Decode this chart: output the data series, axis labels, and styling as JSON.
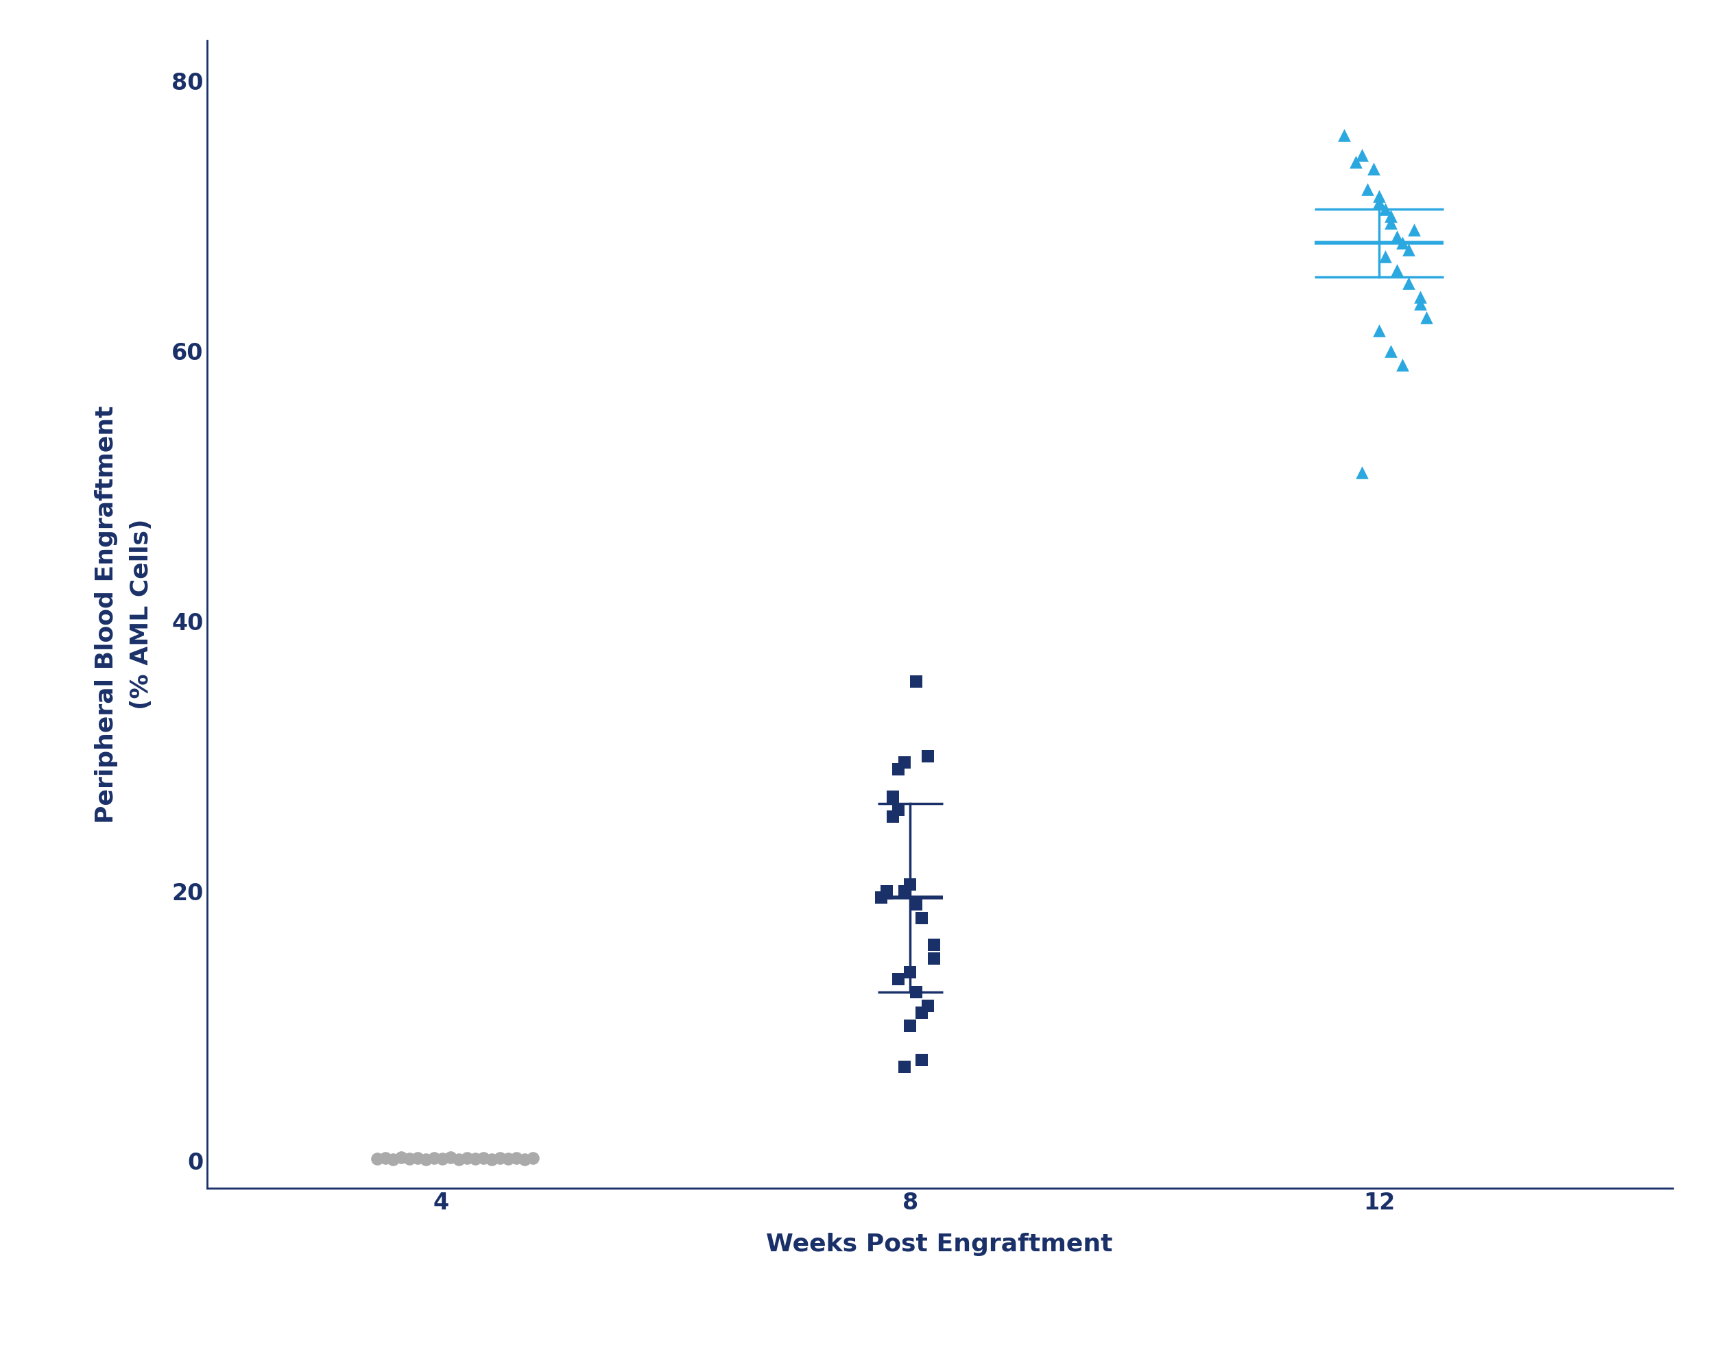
{
  "xlabel": "Weeks Post Engraftment",
  "ylabel": "Peripheral Blood Engraftment\n(% AML Cells)",
  "xlim": [
    2.0,
    14.5
  ],
  "ylim": [
    -2,
    83
  ],
  "xticks": [
    4,
    8,
    12
  ],
  "yticks": [
    0,
    20,
    40,
    60,
    80
  ],
  "background_color": "#ffffff",
  "week4_x": [
    3.45,
    3.52,
    3.59,
    3.66,
    3.73,
    3.8,
    3.87,
    3.94,
    4.01,
    4.08,
    4.15,
    4.22,
    4.29,
    4.36,
    4.43,
    4.5,
    4.57,
    4.64,
    4.71,
    4.78
  ],
  "week4_y": [
    0.15,
    0.2,
    0.1,
    0.25,
    0.15,
    0.2,
    0.1,
    0.2,
    0.15,
    0.25,
    0.1,
    0.2,
    0.15,
    0.2,
    0.1,
    0.2,
    0.15,
    0.2,
    0.1,
    0.2
  ],
  "week4_color": "#aaaaaa",
  "week8_x": [
    7.75,
    7.8,
    7.85,
    7.9,
    7.85,
    7.9,
    7.95,
    8.0,
    8.05,
    8.1,
    7.8,
    7.9,
    8.0,
    8.05,
    8.1,
    8.15,
    8.0,
    8.1,
    7.95,
    8.05,
    8.15,
    8.2,
    8.2,
    7.95
  ],
  "week8_y": [
    19.5,
    20.0,
    25.5,
    26.0,
    27.0,
    29.0,
    29.5,
    20.5,
    19.0,
    18.0,
    19.8,
    13.5,
    14.0,
    12.5,
    11.0,
    11.5,
    10.0,
    7.5,
    7.0,
    35.5,
    30.0,
    15.0,
    16.0,
    20.0
  ],
  "week8_mean": 19.5,
  "week8_upper": 26.5,
  "week8_lower": 12.5,
  "week8_color": "#1a3068",
  "week12_x": [
    11.7,
    11.8,
    11.85,
    11.9,
    11.95,
    12.0,
    12.05,
    12.0,
    12.1,
    12.1,
    12.15,
    12.2,
    12.25,
    12.3,
    12.05,
    12.15,
    12.25,
    12.35,
    12.35,
    12.4,
    12.0,
    12.1,
    12.2,
    11.85
  ],
  "week12_y": [
    76.0,
    74.0,
    74.5,
    72.0,
    73.5,
    71.0,
    70.5,
    71.5,
    70.0,
    69.5,
    68.5,
    68.0,
    67.5,
    69.0,
    67.0,
    66.0,
    65.0,
    64.0,
    63.5,
    62.5,
    61.5,
    60.0,
    59.0,
    51.0
  ],
  "week12_mean": 68.0,
  "week12_upper": 70.5,
  "week12_lower": 65.5,
  "week12_color": "#2ba8e0",
  "navy_color": "#1a3068",
  "label_fontsize": 26,
  "tick_fontsize": 24,
  "marker_size": 180,
  "spine_lw": 2.0
}
